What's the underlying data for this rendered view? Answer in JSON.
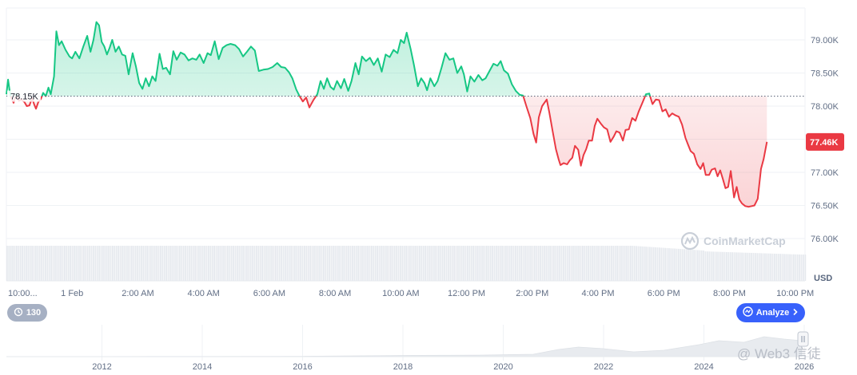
{
  "chart_data": {
    "type": "area",
    "title": "",
    "xlabel": "",
    "ylabel": "",
    "y_unit_label": "USD",
    "ylim": [
      75800,
      79500
    ],
    "y_ticks": [
      {
        "value": 76000,
        "label": "76.00K"
      },
      {
        "value": 76500,
        "label": "76.50K"
      },
      {
        "value": 77000,
        "label": "77.00K"
      },
      {
        "value": 77500,
        "label": "77.50K"
      },
      {
        "value": 78000,
        "label": "78.00K"
      },
      {
        "value": 78500,
        "label": "78.50K"
      },
      {
        "value": 79000,
        "label": "79.00K"
      }
    ],
    "x_ticks": [
      {
        "hour": -2,
        "label": "10:00..."
      },
      {
        "hour": 0,
        "label": "1 Feb"
      },
      {
        "hour": 2,
        "label": "2:00 AM"
      },
      {
        "hour": 4,
        "label": "4:00 AM"
      },
      {
        "hour": 6,
        "label": "6:00 AM"
      },
      {
        "hour": 8,
        "label": "8:00 AM"
      },
      {
        "hour": 10,
        "label": "10:00 AM"
      },
      {
        "hour": 12,
        "label": "12:00 PM"
      },
      {
        "hour": 14,
        "label": "2:00 PM"
      },
      {
        "hour": 16,
        "label": "4:00 PM"
      },
      {
        "hour": 18,
        "label": "6:00 PM"
      },
      {
        "hour": 20,
        "label": "8:00 PM"
      },
      {
        "hour": 22,
        "label": "10:00 PM"
      }
    ],
    "baseline": {
      "value": 78150,
      "label": "78.15K"
    },
    "current": {
      "value": 77460,
      "label": "77.46K"
    },
    "colors": {
      "above": "#16c784",
      "below": "#ea3943",
      "badge": "#ea3943",
      "volume": "#e6e9ee"
    },
    "series": [
      {
        "values": [
          [
            -2.0,
            78180
          ],
          [
            -1.95,
            78400
          ],
          [
            -1.9,
            78230
          ],
          [
            -1.85,
            78120
          ],
          [
            -1.78,
            78050
          ],
          [
            -1.7,
            78180
          ],
          [
            -1.62,
            78080
          ],
          [
            -1.55,
            78100
          ],
          [
            -1.45,
            78060
          ],
          [
            -1.38,
            78000
          ],
          [
            -1.3,
            78010
          ],
          [
            -1.22,
            78120
          ],
          [
            -1.15,
            78020
          ],
          [
            -1.1,
            77960
          ],
          [
            -1.03,
            78060
          ],
          [
            -0.95,
            78110
          ],
          [
            -0.88,
            78200
          ],
          [
            -0.8,
            78150
          ],
          [
            -0.72,
            78280
          ],
          [
            -0.65,
            78180
          ],
          [
            -0.55,
            78450
          ],
          [
            -0.48,
            79130
          ],
          [
            -0.4,
            78920
          ],
          [
            -0.32,
            78980
          ],
          [
            -0.2,
            78850
          ],
          [
            -0.08,
            78750
          ],
          [
            0.0,
            78720
          ],
          [
            0.1,
            78820
          ],
          [
            0.22,
            78720
          ],
          [
            0.34,
            78900
          ],
          [
            0.46,
            79060
          ],
          [
            0.56,
            78820
          ],
          [
            0.65,
            79000
          ],
          [
            0.74,
            79270
          ],
          [
            0.82,
            79220
          ],
          [
            0.9,
            78970
          ],
          [
            0.98,
            78900
          ],
          [
            1.06,
            78780
          ],
          [
            1.14,
            78880
          ],
          [
            1.22,
            79000
          ],
          [
            1.32,
            78820
          ],
          [
            1.42,
            78900
          ],
          [
            1.52,
            78780
          ],
          [
            1.62,
            78760
          ],
          [
            1.72,
            78480
          ],
          [
            1.84,
            78800
          ],
          [
            1.94,
            78600
          ],
          [
            2.04,
            78350
          ],
          [
            2.14,
            78260
          ],
          [
            2.24,
            78420
          ],
          [
            2.34,
            78300
          ],
          [
            2.44,
            78450
          ],
          [
            2.54,
            78380
          ],
          [
            2.66,
            78790
          ],
          [
            2.76,
            78560
          ],
          [
            2.86,
            78580
          ],
          [
            2.98,
            78480
          ],
          [
            3.08,
            78830
          ],
          [
            3.18,
            78700
          ],
          [
            3.3,
            78810
          ],
          [
            3.42,
            78780
          ],
          [
            3.54,
            78690
          ],
          [
            3.66,
            78720
          ],
          [
            3.78,
            78700
          ],
          [
            3.88,
            78780
          ],
          [
            4.0,
            78650
          ],
          [
            4.12,
            78800
          ],
          [
            4.22,
            78770
          ],
          [
            4.34,
            78980
          ],
          [
            4.46,
            78710
          ],
          [
            4.58,
            78880
          ],
          [
            4.7,
            78920
          ],
          [
            4.82,
            78940
          ],
          [
            4.96,
            78920
          ],
          [
            5.08,
            78860
          ],
          [
            5.2,
            78750
          ],
          [
            5.32,
            78820
          ],
          [
            5.44,
            78900
          ],
          [
            5.56,
            78840
          ],
          [
            5.68,
            78530
          ],
          [
            5.82,
            78550
          ],
          [
            5.96,
            78560
          ],
          [
            6.1,
            78590
          ],
          [
            6.24,
            78650
          ],
          [
            6.36,
            78590
          ],
          [
            6.48,
            78580
          ],
          [
            6.6,
            78510
          ],
          [
            6.7,
            78420
          ],
          [
            6.82,
            78250
          ],
          [
            6.92,
            78150
          ],
          [
            7.02,
            78070
          ],
          [
            7.12,
            78130
          ],
          [
            7.22,
            77980
          ],
          [
            7.34,
            78090
          ],
          [
            7.46,
            78180
          ],
          [
            7.56,
            78380
          ],
          [
            7.66,
            78260
          ],
          [
            7.76,
            78420
          ],
          [
            7.86,
            78290
          ],
          [
            7.96,
            78250
          ],
          [
            8.06,
            78380
          ],
          [
            8.18,
            78270
          ],
          [
            8.28,
            78410
          ],
          [
            8.4,
            78230
          ],
          [
            8.5,
            78380
          ],
          [
            8.62,
            78650
          ],
          [
            8.72,
            78480
          ],
          [
            8.82,
            78750
          ],
          [
            8.94,
            78680
          ],
          [
            9.06,
            78730
          ],
          [
            9.18,
            78620
          ],
          [
            9.3,
            78720
          ],
          [
            9.42,
            78520
          ],
          [
            9.54,
            78780
          ],
          [
            9.66,
            78740
          ],
          [
            9.78,
            78850
          ],
          [
            9.9,
            78800
          ],
          [
            10.0,
            79000
          ],
          [
            10.1,
            78950
          ],
          [
            10.18,
            79110
          ],
          [
            10.3,
            78860
          ],
          [
            10.4,
            78620
          ],
          [
            10.52,
            78300
          ],
          [
            10.62,
            78420
          ],
          [
            10.72,
            78350
          ],
          [
            10.8,
            78240
          ],
          [
            10.9,
            78420
          ],
          [
            11.02,
            78300
          ],
          [
            11.12,
            78380
          ],
          [
            11.24,
            78580
          ],
          [
            11.36,
            78800
          ],
          [
            11.48,
            78700
          ],
          [
            11.6,
            78720
          ],
          [
            11.72,
            78500
          ],
          [
            11.84,
            78600
          ],
          [
            11.92,
            78480
          ],
          [
            12.02,
            78220
          ],
          [
            12.12,
            78450
          ],
          [
            12.24,
            78370
          ],
          [
            12.36,
            78470
          ],
          [
            12.48,
            78390
          ],
          [
            12.58,
            78420
          ],
          [
            12.7,
            78530
          ],
          [
            12.82,
            78640
          ],
          [
            12.94,
            78610
          ],
          [
            13.04,
            78680
          ],
          [
            13.14,
            78540
          ],
          [
            13.26,
            78490
          ],
          [
            13.38,
            78330
          ],
          [
            13.5,
            78230
          ],
          [
            13.62,
            78170
          ],
          [
            13.72,
            78160
          ],
          [
            13.82,
            78000
          ],
          [
            13.94,
            77820
          ],
          [
            14.04,
            77580
          ],
          [
            14.12,
            77450
          ],
          [
            14.2,
            77830
          ],
          [
            14.3,
            78000
          ],
          [
            14.44,
            78100
          ],
          [
            14.52,
            77900
          ],
          [
            14.62,
            77620
          ],
          [
            14.72,
            77350
          ],
          [
            14.8,
            77200
          ],
          [
            14.86,
            77110
          ],
          [
            14.96,
            77140
          ],
          [
            15.06,
            77120
          ],
          [
            15.14,
            77180
          ],
          [
            15.22,
            77220
          ],
          [
            15.3,
            77400
          ],
          [
            15.4,
            77340
          ],
          [
            15.48,
            77100
          ],
          [
            15.56,
            77260
          ],
          [
            15.64,
            77350
          ],
          [
            15.72,
            77480
          ],
          [
            15.82,
            77480
          ],
          [
            15.9,
            77700
          ],
          [
            15.98,
            77810
          ],
          [
            16.08,
            77740
          ],
          [
            16.18,
            77680
          ],
          [
            16.28,
            77650
          ],
          [
            16.38,
            77460
          ],
          [
            16.48,
            77540
          ],
          [
            16.56,
            77620
          ],
          [
            16.66,
            77600
          ],
          [
            16.76,
            77480
          ],
          [
            16.84,
            77640
          ],
          [
            16.94,
            77650
          ],
          [
            17.04,
            77820
          ],
          [
            17.14,
            77780
          ],
          [
            17.24,
            77920
          ],
          [
            17.36,
            78060
          ],
          [
            17.46,
            78180
          ],
          [
            17.56,
            78190
          ],
          [
            17.66,
            78030
          ],
          [
            17.76,
            78100
          ],
          [
            17.86,
            78090
          ],
          [
            17.96,
            77920
          ],
          [
            18.06,
            77950
          ],
          [
            18.16,
            77840
          ],
          [
            18.26,
            77890
          ],
          [
            18.36,
            77860
          ],
          [
            18.46,
            77840
          ],
          [
            18.56,
            77720
          ],
          [
            18.66,
            77520
          ],
          [
            18.74,
            77420
          ],
          [
            18.82,
            77320
          ],
          [
            18.92,
            77280
          ],
          [
            19.02,
            77120
          ],
          [
            19.12,
            77050
          ],
          [
            19.2,
            77140
          ],
          [
            19.28,
            76960
          ],
          [
            19.38,
            76960
          ],
          [
            19.46,
            77040
          ],
          [
            19.56,
            77060
          ],
          [
            19.64,
            76940
          ],
          [
            19.72,
            77030
          ],
          [
            19.8,
            76900
          ],
          [
            19.88,
            76760
          ],
          [
            19.96,
            76780
          ],
          [
            20.04,
            77020
          ],
          [
            20.14,
            76620
          ],
          [
            20.22,
            76780
          ],
          [
            20.3,
            76590
          ],
          [
            20.38,
            76530
          ],
          [
            20.48,
            76490
          ],
          [
            20.58,
            76480
          ],
          [
            20.68,
            76490
          ],
          [
            20.76,
            76500
          ],
          [
            20.86,
            76600
          ],
          [
            20.96,
            77050
          ],
          [
            21.04,
            77200
          ],
          [
            21.14,
            77460
          ]
        ]
      }
    ],
    "navigator": {
      "year_ticks": [
        "2012",
        "2014",
        "2016",
        "2018",
        "2020",
        "2022",
        "2024",
        "2026"
      ],
      "year_start": 2010.0,
      "year_end": 2026.0
    }
  },
  "ui": {
    "analyze_label": "Analyze",
    "history_count": "130",
    "watermark": "CoinMarketCap",
    "source_watermark": "@ Web3 信徒"
  }
}
